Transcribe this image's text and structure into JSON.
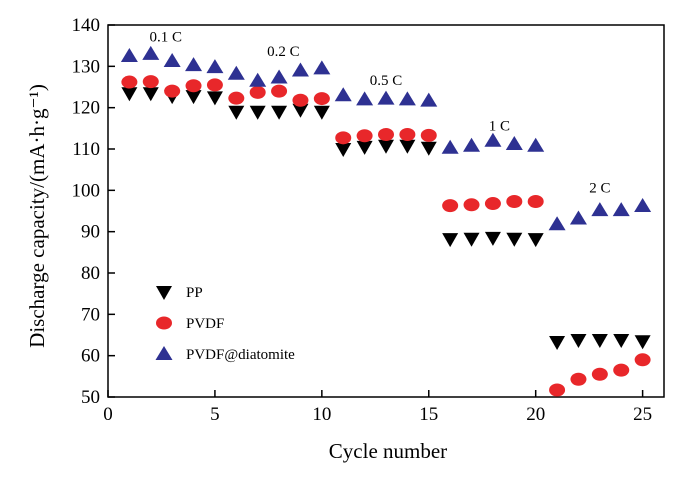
{
  "chart_data": {
    "type": "scatter",
    "xlabel": "Cycle number",
    "ylabel": "Discharge capacity/(mA·h·g⁻¹)",
    "xlim": [
      0,
      26
    ],
    "ylim": [
      50,
      140
    ],
    "xticks": [
      0,
      5,
      10,
      15,
      20,
      25
    ],
    "yticks": [
      50,
      60,
      70,
      80,
      90,
      100,
      110,
      120,
      130,
      140
    ],
    "grid": false,
    "legend_position": "bottom-left",
    "annotations": [
      {
        "text": "0.1 C",
        "x": 2.7,
        "y": 136
      },
      {
        "text": "0.2 C",
        "x": 8.2,
        "y": 132.5
      },
      {
        "text": "0.5 C",
        "x": 13.0,
        "y": 125.5
      },
      {
        "text": "1 C",
        "x": 18.3,
        "y": 114.5
      },
      {
        "text": "2 C",
        "x": 23.0,
        "y": 99.5
      }
    ],
    "series": [
      {
        "name": "PP",
        "marker": "triangle-down",
        "color": "#000000",
        "x": [
          1,
          2,
          3,
          4,
          5,
          6,
          7,
          8,
          9,
          10,
          11,
          12,
          13,
          14,
          15,
          16,
          17,
          18,
          19,
          20,
          21,
          22,
          23,
          24,
          25
        ],
        "y": [
          123.5,
          123.5,
          122.8,
          122.8,
          122.5,
          119.0,
          119.0,
          119.0,
          119.5,
          119.0,
          110.0,
          110.5,
          110.8,
          110.8,
          110.3,
          88.2,
          88.3,
          88.5,
          88.3,
          88.2,
          63.3,
          63.8,
          63.8,
          63.8,
          63.5
        ]
      },
      {
        "name": "PVDF",
        "marker": "circle",
        "color": "#e8272a",
        "x": [
          1,
          2,
          3,
          4,
          5,
          6,
          7,
          8,
          9,
          10,
          11,
          12,
          13,
          14,
          15,
          16,
          17,
          18,
          19,
          20,
          21,
          22,
          23,
          24,
          25
        ],
        "y": [
          126.2,
          126.3,
          124.0,
          125.3,
          125.5,
          122.3,
          123.7,
          124.0,
          121.8,
          122.2,
          112.7,
          113.2,
          113.5,
          113.5,
          113.3,
          96.3,
          96.5,
          96.8,
          97.3,
          97.3,
          51.7,
          54.3,
          55.5,
          56.5,
          59.0
        ]
      },
      {
        "name": "PVDF@diatomite",
        "marker": "triangle-up",
        "color": "#2e3192",
        "x": [
          1,
          2,
          3,
          4,
          5,
          6,
          7,
          8,
          9,
          10,
          11,
          12,
          13,
          14,
          15,
          16,
          17,
          18,
          19,
          20,
          21,
          22,
          23,
          24,
          25
        ],
        "y": [
          132.5,
          133.0,
          131.3,
          130.3,
          129.8,
          128.2,
          126.5,
          127.3,
          129.0,
          129.5,
          123.0,
          122.0,
          122.2,
          122.0,
          121.7,
          110.3,
          110.8,
          112.0,
          111.2,
          110.8,
          91.8,
          93.2,
          95.2,
          95.2,
          96.2
        ]
      }
    ]
  }
}
